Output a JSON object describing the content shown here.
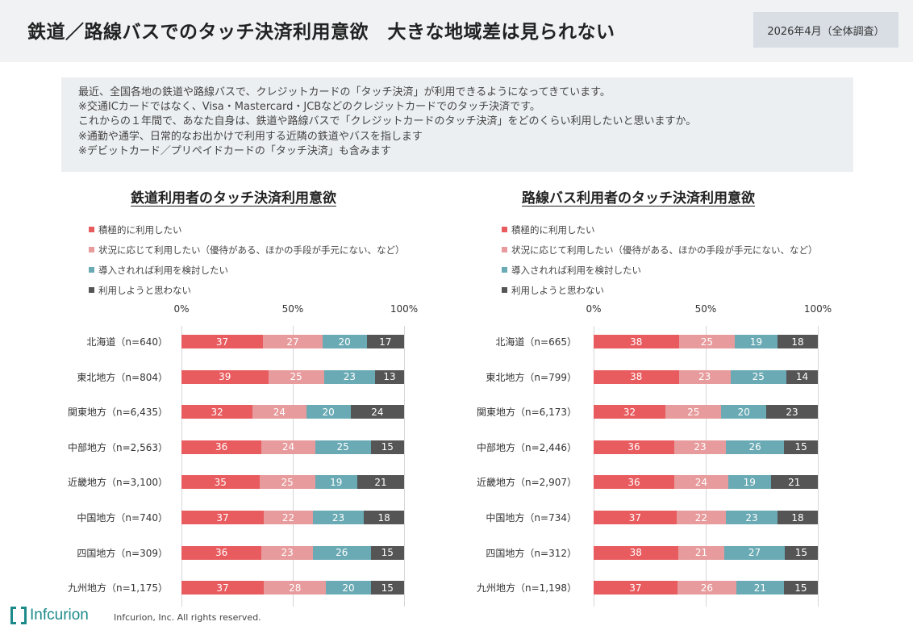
{
  "header": {
    "title": "鉄道／路線バスでのタッチ決済利用意欲　大きな地域差は見られない",
    "date": "2026年4月（全体調査）"
  },
  "question": {
    "lines": [
      "最近、全国各地の鉄道や路線バスで、クレジットカードの「タッチ決済」が利用できるようになってきています。",
      "※交通ICカードではなく、Visa・Mastercard・JCBなどのクレジットカードでのタッチ決済です。",
      "これからの１年間で、あなた自身は、鉄道や路線バスで「クレジットカードのタッチ決済」をどのくらい利用したいと思いますか。",
      "※通勤や通学、日常的なお出かけで利用する近隣の鉄道やバスを指します",
      "※デビットカード／プリペイドカードの「タッチ決済」も含みます"
    ]
  },
  "colors": {
    "positive": "#e85c5f",
    "conditional": "#e79b9c",
    "consider": "#6aaab4",
    "no": "#555555"
  },
  "chart_data": [
    {
      "type": "bar",
      "stacked": true,
      "orientation": "horizontal",
      "title": "鉄道利用者のタッチ決済利用意欲",
      "xlim": [
        0,
        100
      ],
      "x_tick_labels": [
        "0%",
        "50%",
        "100%"
      ],
      "legend_position": "top-left",
      "categories": [
        "北海道（n=640）",
        "東北地方（n=804）",
        "関東地方（n=6,435）",
        "中部地方（n=2,563）",
        "近畿地方（n=3,100）",
        "中国地方（n=740）",
        "四国地方（n=309）",
        "九州地方（n=1,175）"
      ],
      "series": [
        {
          "name": "積極的に利用したい",
          "color": "#e85c5f",
          "values": [
            37,
            39,
            32,
            36,
            35,
            37,
            36,
            37
          ]
        },
        {
          "name": "状況に応じて利用したい（優待がある、ほかの手段が手元にない、など）",
          "color": "#e79b9c",
          "values": [
            27,
            25,
            24,
            24,
            25,
            22,
            23,
            28
          ]
        },
        {
          "name": "導入されれば利用を検討したい",
          "color": "#6aaab4",
          "values": [
            20,
            23,
            20,
            25,
            19,
            23,
            26,
            20
          ]
        },
        {
          "name": "利用しようと思わない",
          "color": "#555555",
          "values": [
            17,
            13,
            24,
            15,
            21,
            18,
            15,
            15
          ]
        }
      ]
    },
    {
      "type": "bar",
      "stacked": true,
      "orientation": "horizontal",
      "title": "路線バス利用者のタッチ決済利用意欲",
      "xlim": [
        0,
        100
      ],
      "x_tick_labels": [
        "0%",
        "50%",
        "100%"
      ],
      "legend_position": "top-left",
      "categories": [
        "北海道（n=665）",
        "東北地方（n=799）",
        "関東地方（n=6,173）",
        "中部地方（n=2,446）",
        "近畿地方（n=2,907）",
        "中国地方（n=734）",
        "四国地方（n=312）",
        "九州地方（n=1,198）"
      ],
      "series": [
        {
          "name": "積極的に利用したい",
          "color": "#e85c5f",
          "values": [
            38,
            38,
            32,
            36,
            36,
            37,
            38,
            37
          ]
        },
        {
          "name": "状況に応じて利用したい（優待がある、ほかの手段が手元にない、など）",
          "color": "#e79b9c",
          "values": [
            25,
            23,
            25,
            23,
            24,
            22,
            21,
            26
          ]
        },
        {
          "name": "導入されれば利用を検討したい",
          "color": "#6aaab4",
          "values": [
            19,
            25,
            20,
            26,
            19,
            23,
            27,
            21
          ]
        },
        {
          "name": "利用しようと思わない",
          "color": "#555555",
          "values": [
            18,
            14,
            23,
            15,
            21,
            18,
            15,
            15
          ]
        }
      ]
    }
  ],
  "footer": {
    "logo": "Infcurion",
    "copyright": "Infcurion, Inc.  All rights reserved."
  }
}
